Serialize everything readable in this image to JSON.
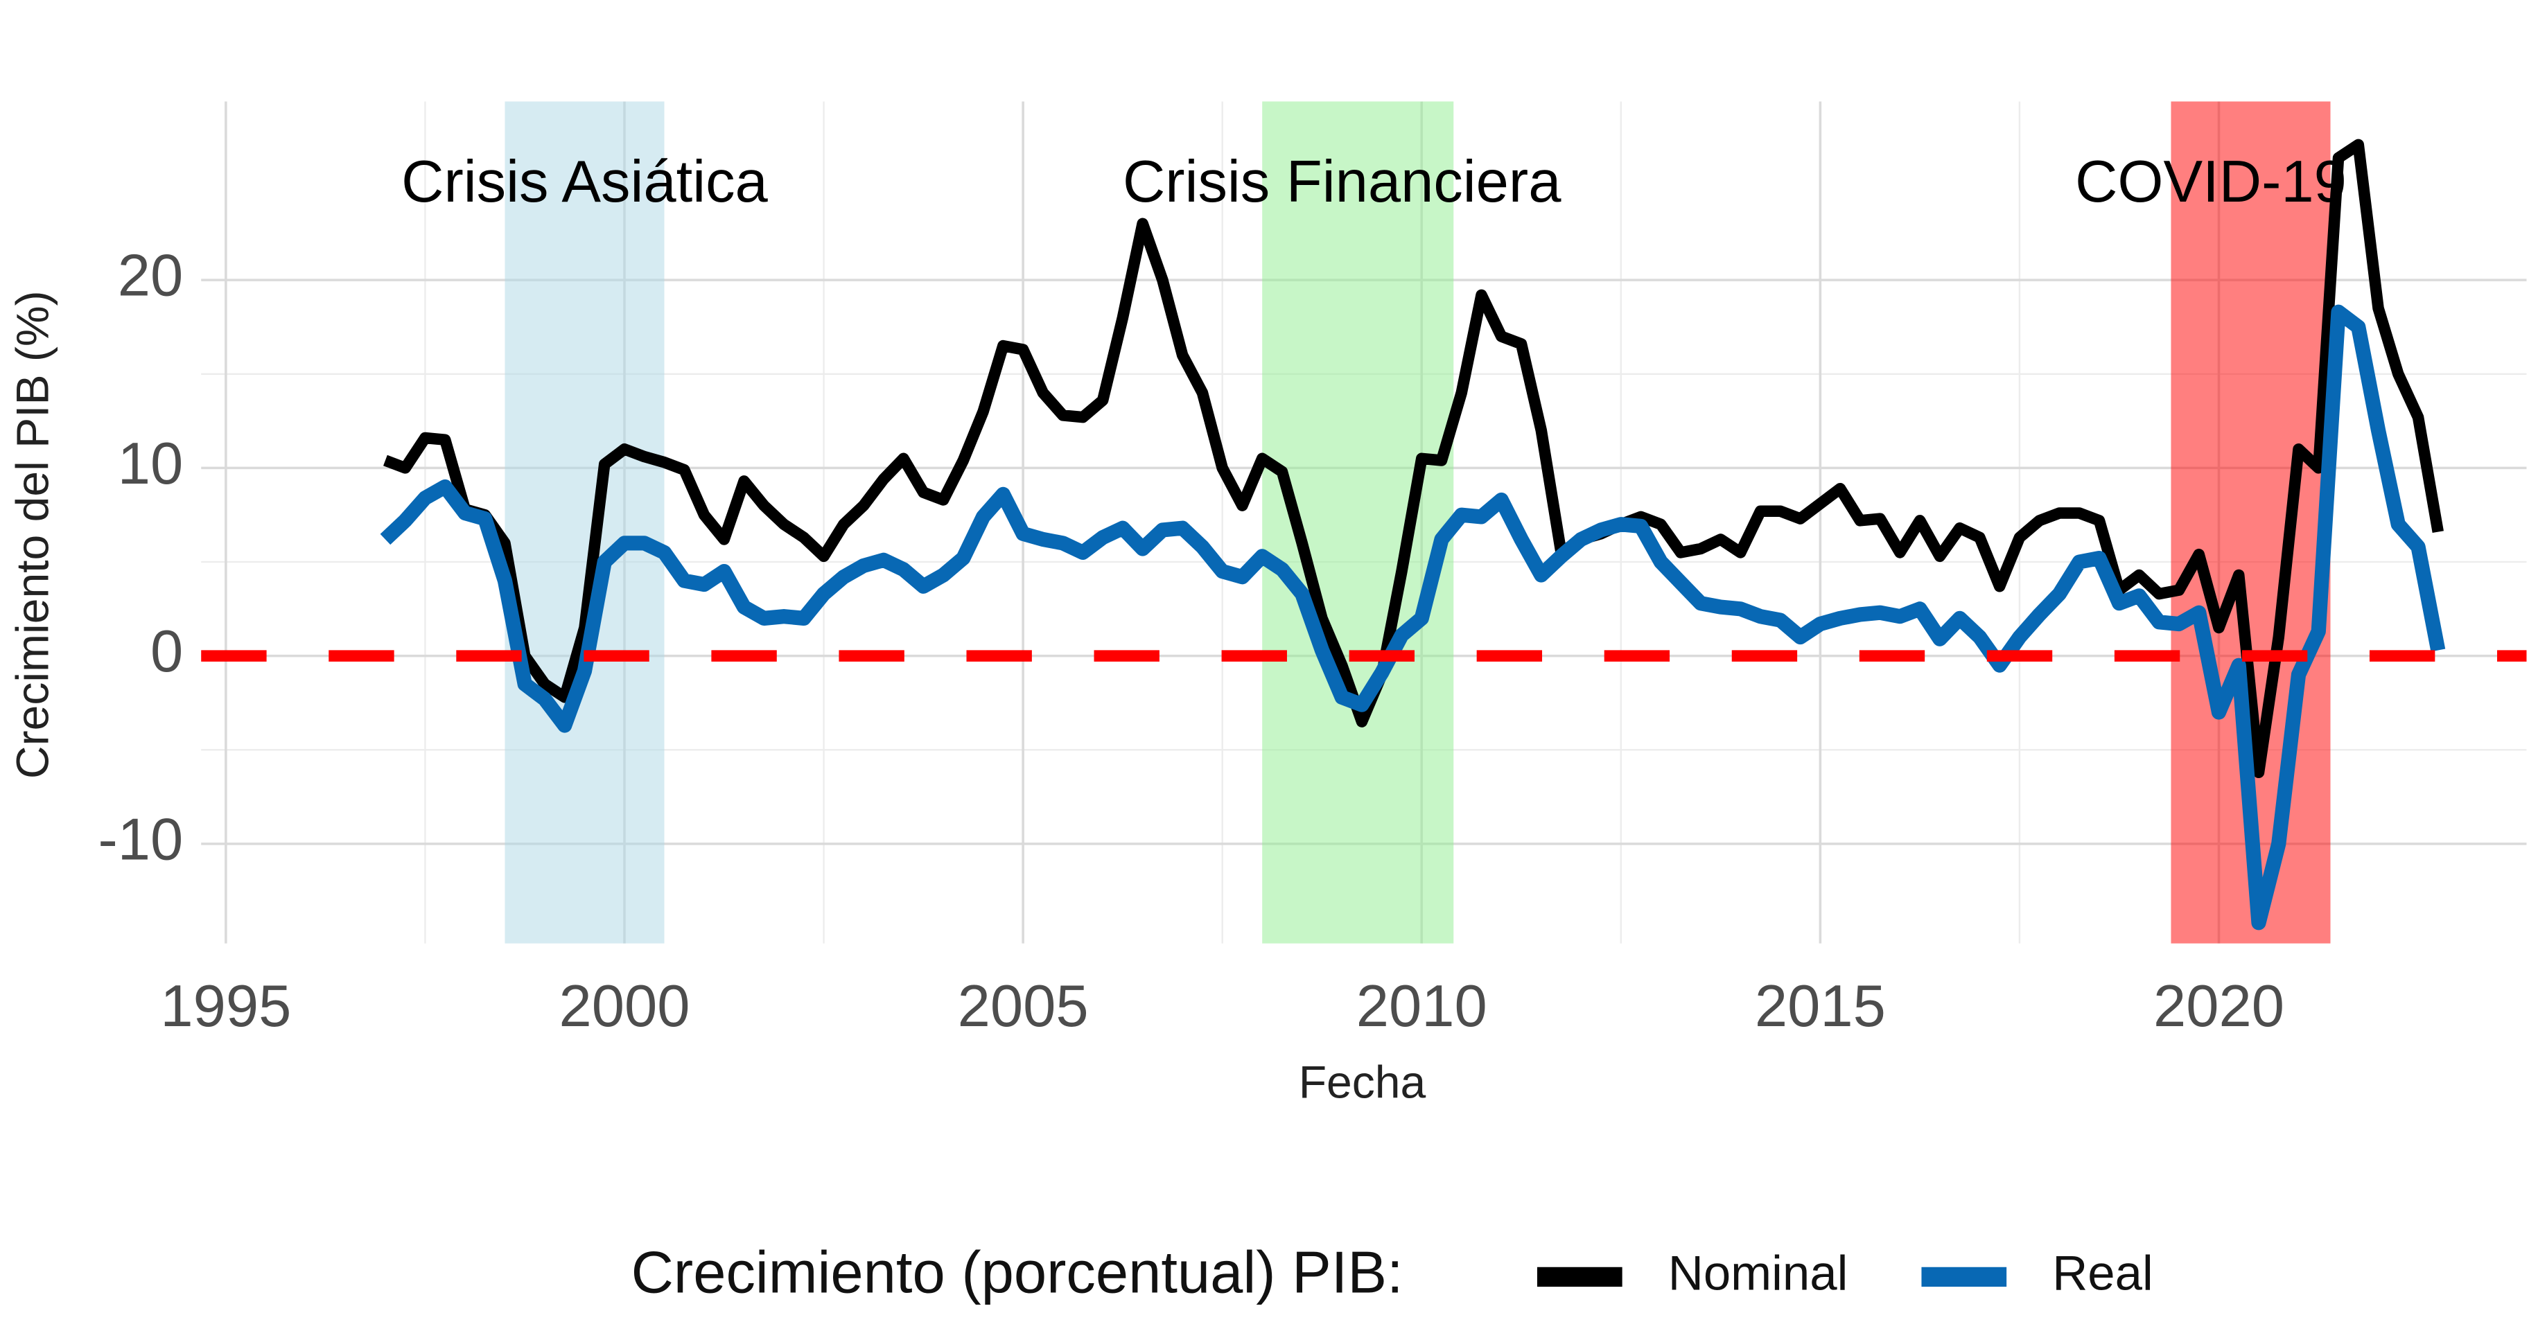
{
  "chart_data": {
    "type": "line",
    "x_label": "Fecha",
    "y_label": "Crecimiento del PIB (%)",
    "legend_title": "Crecimiento (porcentual) PIB:",
    "legend_position": "bottom",
    "xlim": [
      1994.69,
      2023.86
    ],
    "xticks": [
      1995,
      2000,
      2005,
      2010,
      2015,
      2020
    ],
    "ylim": [
      -15.3,
      29.5
    ],
    "yticks": [
      -10,
      0,
      10,
      20
    ],
    "grid": true,
    "x": [
      1997,
      1997.25,
      1997.5,
      1997.75,
      1998,
      1998.25,
      1998.5,
      1998.75,
      1999,
      1999.25,
      1999.5,
      1999.75,
      2000,
      2000.25,
      2000.5,
      2000.75,
      2001,
      2001.25,
      2001.5,
      2001.75,
      2002,
      2002.25,
      2002.5,
      2002.75,
      2003,
      2003.25,
      2003.5,
      2003.75,
      2004,
      2004.25,
      2004.5,
      2004.75,
      2005,
      2005.25,
      2005.5,
      2005.75,
      2006,
      2006.25,
      2006.5,
      2006.75,
      2007,
      2007.25,
      2007.5,
      2007.75,
      2008,
      2008.25,
      2008.5,
      2008.75,
      2009,
      2009.25,
      2009.5,
      2009.75,
      2010,
      2010.25,
      2010.5,
      2010.75,
      2011,
      2011.25,
      2011.5,
      2011.75,
      2012,
      2012.25,
      2012.5,
      2012.75,
      2013,
      2013.25,
      2013.5,
      2013.75,
      2014,
      2014.25,
      2014.5,
      2014.75,
      2015,
      2015.25,
      2015.5,
      2015.75,
      2016,
      2016.25,
      2016.5,
      2016.75,
      2017,
      2017.25,
      2017.5,
      2017.75,
      2018,
      2018.25,
      2018.5,
      2018.75,
      2019,
      2019.25,
      2019.5,
      2019.75,
      2020,
      2020.25,
      2020.5,
      2020.75,
      2021,
      2021.25,
      2021.5,
      2021.75,
      2022,
      2022.25,
      2022.5,
      2022.75
    ],
    "series": [
      {
        "name": "Nominal",
        "color": "#000000",
        "values": [
          10.4,
          10,
          11.6,
          11.5,
          7.8,
          7.5,
          6,
          0,
          -1.5,
          -2.2,
          1.5,
          10.2,
          11,
          10.6,
          10.3,
          9.9,
          7.5,
          6.2,
          9.3,
          8,
          7,
          6.3,
          5.3,
          7,
          8,
          9.4,
          10.5,
          8.7,
          8.3,
          10.4,
          13,
          16.5,
          16.3,
          14,
          12.8,
          12.7,
          13.6,
          18,
          23,
          20,
          16,
          14,
          10,
          8,
          10.5,
          9.8,
          6,
          2,
          -0.5,
          -3.5,
          -1,
          4.5,
          10.5,
          10.4,
          14,
          19.2,
          17,
          16.6,
          12,
          5.5,
          6.2,
          6.5,
          7,
          7.4,
          7,
          5.5,
          5.7,
          6.2,
          5.5,
          7.7,
          7.7,
          7.3,
          8.1,
          8.9,
          7.2,
          7.3,
          5.5,
          7.2,
          5.3,
          6.8,
          6.3,
          3.7,
          6.3,
          7.2,
          7.6,
          7.6,
          7.2,
          3.5,
          4.3,
          3.3,
          3.5,
          5.4,
          1.5,
          4.3,
          -6.2,
          1,
          11,
          10,
          26.5,
          27.2,
          18.5,
          15,
          12.7,
          6.6
        ]
      },
      {
        "name": "Real",
        "color": "#0868b4",
        "values": [
          6.2,
          7.2,
          8.4,
          9,
          7.6,
          7.3,
          4,
          -1.5,
          -2.3,
          -3.7,
          -0.8,
          5,
          6,
          6,
          5.5,
          4,
          3.8,
          4.5,
          2.6,
          2,
          2.1,
          2,
          3.3,
          4.2,
          4.8,
          5.1,
          4.6,
          3.7,
          4.3,
          5.2,
          7.4,
          8.6,
          6.5,
          6.2,
          6,
          5.5,
          6.3,
          6.8,
          5.7,
          6.7,
          6.8,
          5.8,
          4.5,
          4.2,
          5.3,
          4.6,
          3.3,
          0.3,
          -2.2,
          -2.6,
          -0.9,
          1.1,
          2,
          6.2,
          7.5,
          7.4,
          8.3,
          6.2,
          4.3,
          5.3,
          6.2,
          6.7,
          7,
          6.9,
          5,
          3.9,
          2.8,
          2.6,
          2.5,
          2.1,
          1.9,
          1,
          1.7,
          2,
          2.2,
          2.3,
          2.1,
          2.5,
          0.9,
          2,
          1,
          -0.5,
          1,
          2.2,
          3.3,
          5,
          5.2,
          2.8,
          3.2,
          1.8,
          1.7,
          2.3,
          -3,
          -0.5,
          -14.2,
          -10,
          -1,
          1.3,
          18.3,
          17.5,
          12,
          7,
          5.8,
          0.3
        ]
      }
    ],
    "shaded": [
      {
        "xmin": 1998.5,
        "xmax": 2000.5,
        "color": "#add8e6"
      },
      {
        "xmin": 2008,
        "xmax": 2010.4,
        "color": "#90ee90"
      },
      {
        "xmin": 2019.4,
        "xmax": 2021.4,
        "color": "#ff0000"
      }
    ],
    "annotations": [
      {
        "text": "Crisis Asiática",
        "x": 1999.5,
        "y": 25
      },
      {
        "text": "Crisis Financiera",
        "x": 2009.0,
        "y": 25
      },
      {
        "text": "COVID-19",
        "x": 2019.9,
        "y": 25
      }
    ],
    "hline": {
      "y": 0,
      "color": "#ff0000"
    }
  }
}
